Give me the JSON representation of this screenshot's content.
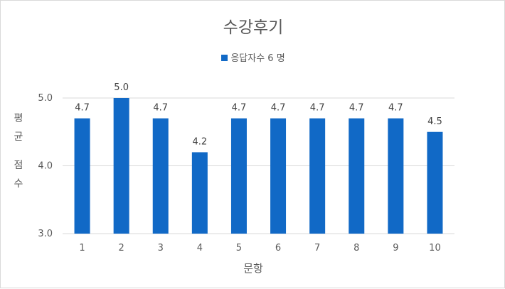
{
  "chart_data": {
    "type": "bar",
    "title": "수강후기",
    "legend": {
      "label": "응답자수 6 명",
      "placement": "top"
    },
    "xlabel": "문항",
    "ylabel": "평균 점수",
    "ylabel_lines": [
      "평",
      "균",
      "",
      "점",
      "수"
    ],
    "categories": [
      "1",
      "2",
      "3",
      "4",
      "5",
      "6",
      "7",
      "8",
      "9",
      "10"
    ],
    "values": [
      4.7,
      5.0,
      4.7,
      4.2,
      4.7,
      4.7,
      4.7,
      4.7,
      4.7,
      4.5
    ],
    "value_labels": [
      "4.7",
      "5.0",
      "4.7",
      "4.2",
      "4.7",
      "4.7",
      "4.7",
      "4.7",
      "4.7",
      "4.5"
    ],
    "ylim": [
      3.0,
      5.0
    ],
    "yticks": [
      "3.0",
      "4.0",
      "5.0"
    ],
    "grid": true,
    "colors": {
      "bar": "#1169c6",
      "grid": "#d9d9d9",
      "text": "#595959"
    }
  }
}
